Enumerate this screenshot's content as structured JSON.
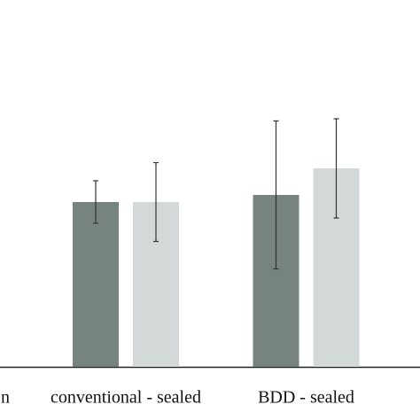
{
  "chart_data": {
    "type": "bar",
    "categories": [
      "n",
      "conventional - sealed",
      "BDD - sealed"
    ],
    "series": [
      {
        "color": "#76837f",
        "values": [
          null,
          186,
          194
        ],
        "errors": [
          null,
          24,
          83.5
        ]
      },
      {
        "color": "#d3d9d8",
        "values": [
          null,
          186,
          224
        ],
        "errors": [
          null,
          44.5,
          56
        ]
      }
    ],
    "ylim": [
      0,
      414
    ]
  }
}
